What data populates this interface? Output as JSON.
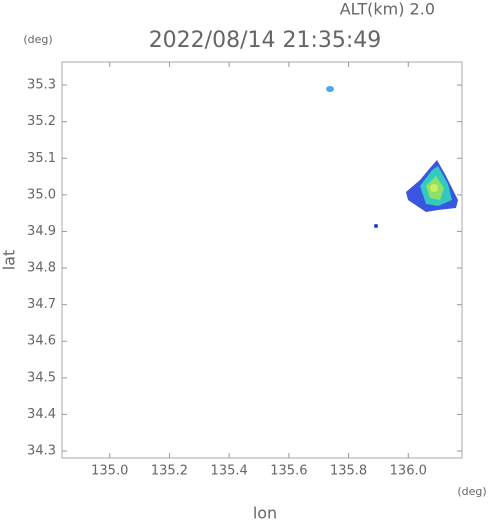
{
  "chart_data": {
    "type": "map",
    "title": "2022/08/14 21:35:49",
    "subtitle": "ALT(km) 2.0",
    "x_label": "lon",
    "y_label": "lat",
    "x_unit": "(deg)",
    "y_unit": "(deg)",
    "xlim": [
      134.84,
      136.18
    ],
    "xticks": [
      {
        "value": 135,
        "label": "135.0"
      },
      135.2,
      135.4,
      135.6,
      135.8,
      {
        "value": 136,
        "label": "136.0"
      }
    ],
    "ylim": [
      34.281,
      35.363
    ],
    "yticks": [
      34.3,
      34.4,
      34.5,
      34.6,
      34.7,
      34.8,
      34.9,
      {
        "value": 35,
        "label": "35.0"
      },
      35.1,
      35.2,
      35.3
    ]
  }
}
